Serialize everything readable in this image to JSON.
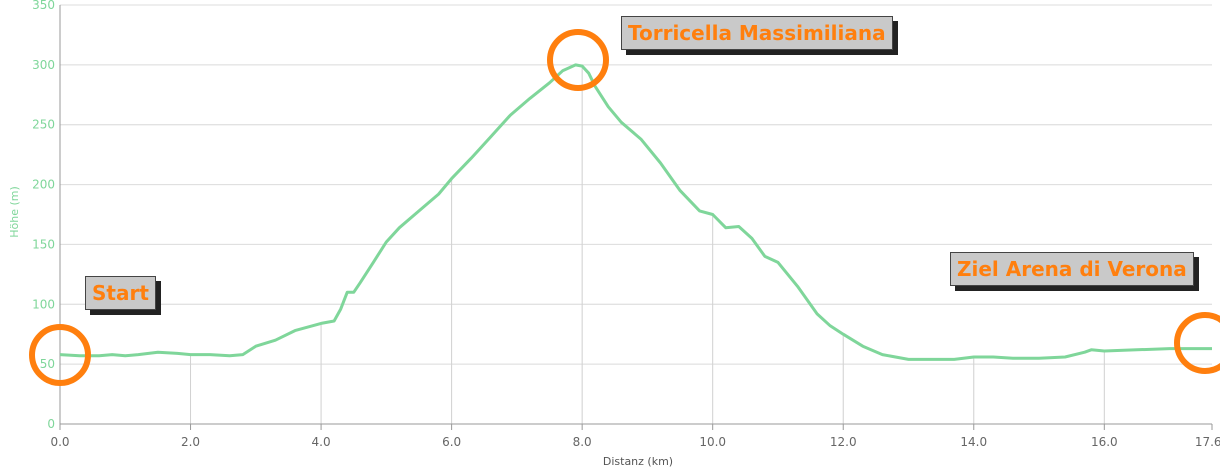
{
  "chart_data": {
    "type": "area",
    "xlabel": "Distanz (km)",
    "ylabel": "Höhe (m)",
    "xlim": [
      0,
      17.65
    ],
    "ylim": [
      0,
      350
    ],
    "x_ticks": [
      "0.0",
      "2.0",
      "4.0",
      "6.0",
      "8.0",
      "10.0",
      "12.0",
      "14.0",
      "16.0",
      "17.65"
    ],
    "y_ticks": [
      "0",
      "50",
      "100",
      "150",
      "200",
      "250",
      "300",
      "350"
    ],
    "grid": true,
    "colors": {
      "line": "#7fd69a",
      "grid": "#c8c8c8",
      "accent": "#ff7f0e"
    },
    "series": [
      {
        "x": [
          0,
          0.3,
          0.6,
          0.8,
          1.0,
          1.2,
          1.5,
          1.8,
          2.0,
          2.3,
          2.6,
          2.8,
          3.0,
          3.3,
          3.6,
          4.0,
          4.2,
          4.3,
          4.4,
          4.5,
          4.6,
          4.8,
          5.0,
          5.2,
          5.5,
          5.8,
          6.0,
          6.3,
          6.6,
          6.9,
          7.2,
          7.5,
          7.7,
          7.9,
          8.0,
          8.1,
          8.2,
          8.4,
          8.6,
          8.9,
          9.2,
          9.5,
          9.8,
          10.0,
          10.2,
          10.4,
          10.6,
          10.8,
          11.0,
          11.3,
          11.6,
          11.8,
          12.0,
          12.3,
          12.6,
          13.0,
          13.3,
          13.6,
          13.7,
          14.0,
          14.3,
          14.6,
          15.0,
          15.4,
          15.7,
          15.8,
          16.0,
          16.5,
          17.0,
          17.65
        ],
        "y": [
          58,
          57,
          57,
          58,
          57,
          58,
          60,
          59,
          58,
          58,
          57,
          58,
          65,
          70,
          78,
          84,
          86,
          96,
          110,
          110,
          118,
          135,
          152,
          164,
          178,
          192,
          205,
          222,
          240,
          258,
          272,
          285,
          295,
          300,
          299,
          293,
          282,
          265,
          252,
          238,
          218,
          195,
          178,
          175,
          164,
          165,
          155,
          140,
          135,
          115,
          92,
          82,
          75,
          65,
          58,
          54,
          54,
          54,
          54,
          56,
          56,
          55,
          55,
          56,
          60,
          62,
          61,
          62,
          63,
          63
        ]
      }
    ],
    "annotations": {
      "start": "Start",
      "peak": "Torricella Massimiliana",
      "finish": "Ziel Arena di Verona"
    }
  }
}
